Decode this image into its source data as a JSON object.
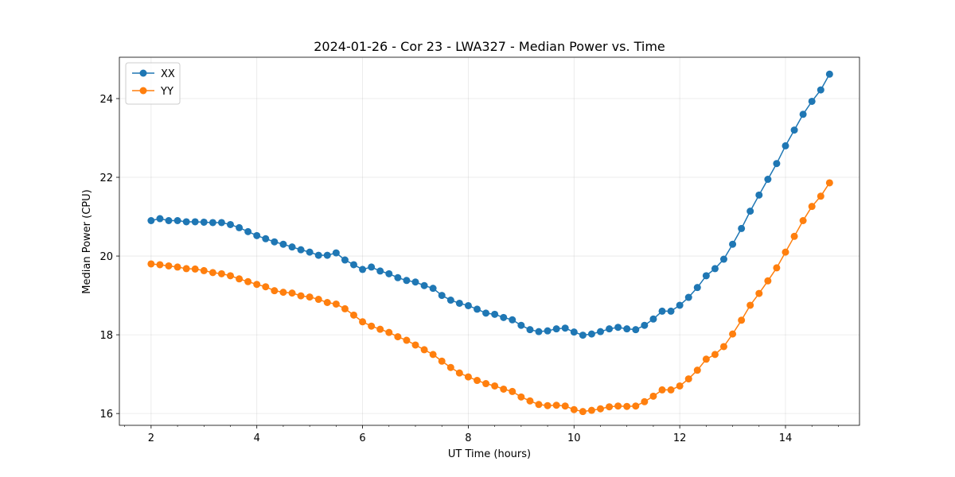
{
  "chart_data": {
    "type": "line",
    "title": "2024-01-26 - Cor 23 - LWA327 - Median Power vs. Time",
    "xlabel": "UT Time (hours)",
    "ylabel": "Median Power (CPU)",
    "xlim": [
      1.4,
      15.4
    ],
    "ylim": [
      15.7,
      25.05
    ],
    "x_ticks": [
      2,
      4,
      6,
      8,
      10,
      12,
      14
    ],
    "x_tick_labels": [
      "2",
      "4",
      "6",
      "8",
      "10",
      "12",
      "14"
    ],
    "y_ticks": [
      16,
      18,
      20,
      22,
      24
    ],
    "y_tick_labels": [
      "16",
      "18",
      "20",
      "22",
      "24"
    ],
    "x_minor_step": 0.5,
    "grid": true,
    "legend_position": "top-left",
    "series": [
      {
        "name": "XX",
        "color": "#1f77b4",
        "x": [
          2.0,
          2.167,
          2.333,
          2.5,
          2.667,
          2.833,
          3.0,
          3.167,
          3.333,
          3.5,
          3.667,
          3.833,
          4.0,
          4.167,
          4.333,
          4.5,
          4.667,
          4.833,
          5.0,
          5.167,
          5.333,
          5.5,
          5.667,
          5.833,
          6.0,
          6.167,
          6.333,
          6.5,
          6.667,
          6.833,
          7.0,
          7.167,
          7.333,
          7.5,
          7.667,
          7.833,
          8.0,
          8.167,
          8.333,
          8.5,
          8.667,
          8.833,
          9.0,
          9.167,
          9.333,
          9.5,
          9.667,
          9.833,
          10.0,
          10.167,
          10.333,
          10.5,
          10.667,
          10.833,
          11.0,
          11.167,
          11.333,
          11.5,
          11.667,
          11.833,
          12.0,
          12.167,
          12.333,
          12.5,
          12.667,
          12.833,
          13.0,
          13.167,
          13.333,
          13.5,
          13.667,
          13.833,
          14.0,
          14.167,
          14.333,
          14.5,
          14.667,
          14.833
        ],
        "y": [
          20.9,
          20.95,
          20.9,
          20.9,
          20.87,
          20.87,
          20.86,
          20.85,
          20.85,
          20.8,
          20.72,
          20.62,
          20.52,
          20.44,
          20.36,
          20.3,
          20.23,
          20.16,
          20.1,
          20.02,
          20.02,
          20.08,
          19.9,
          19.78,
          19.66,
          19.72,
          19.62,
          19.55,
          19.45,
          19.38,
          19.34,
          19.25,
          19.18,
          19.0,
          18.88,
          18.8,
          18.74,
          18.65,
          18.55,
          18.52,
          18.44,
          18.38,
          18.24,
          18.13,
          18.08,
          18.1,
          18.15,
          18.17,
          18.07,
          17.99,
          18.02,
          18.08,
          18.15,
          18.19,
          18.15,
          18.13,
          18.24,
          18.4,
          18.6,
          18.6,
          18.75,
          18.95,
          19.2,
          19.5,
          19.68,
          19.92,
          20.3,
          20.7,
          21.14,
          21.55,
          21.95,
          22.35,
          22.8,
          23.2,
          23.6,
          23.93,
          24.22,
          24.62
        ]
      },
      {
        "name": "YY",
        "color": "#ff7f0e",
        "x": [
          2.0,
          2.167,
          2.333,
          2.5,
          2.667,
          2.833,
          3.0,
          3.167,
          3.333,
          3.5,
          3.667,
          3.833,
          4.0,
          4.167,
          4.333,
          4.5,
          4.667,
          4.833,
          5.0,
          5.167,
          5.333,
          5.5,
          5.667,
          5.833,
          6.0,
          6.167,
          6.333,
          6.5,
          6.667,
          6.833,
          7.0,
          7.167,
          7.333,
          7.5,
          7.667,
          7.833,
          8.0,
          8.167,
          8.333,
          8.5,
          8.667,
          8.833,
          9.0,
          9.167,
          9.333,
          9.5,
          9.667,
          9.833,
          10.0,
          10.167,
          10.333,
          10.5,
          10.667,
          10.833,
          11.0,
          11.167,
          11.333,
          11.5,
          11.667,
          11.833,
          12.0,
          12.167,
          12.333,
          12.5,
          12.667,
          12.833,
          13.0,
          13.167,
          13.333,
          13.5,
          13.667,
          13.833,
          14.0,
          14.167,
          14.333,
          14.5,
          14.667,
          14.833
        ],
        "y": [
          19.8,
          19.78,
          19.75,
          19.72,
          19.68,
          19.67,
          19.63,
          19.58,
          19.55,
          19.5,
          19.42,
          19.35,
          19.28,
          19.22,
          19.12,
          19.08,
          19.06,
          18.99,
          18.96,
          18.9,
          18.82,
          18.78,
          18.66,
          18.5,
          18.33,
          18.22,
          18.14,
          18.06,
          17.95,
          17.86,
          17.74,
          17.62,
          17.5,
          17.33,
          17.17,
          17.03,
          16.93,
          16.84,
          16.76,
          16.7,
          16.62,
          16.56,
          16.42,
          16.32,
          16.23,
          16.2,
          16.21,
          16.19,
          16.1,
          16.05,
          16.08,
          16.12,
          16.17,
          16.19,
          16.18,
          16.19,
          16.3,
          16.44,
          16.6,
          16.6,
          16.7,
          16.88,
          17.1,
          17.38,
          17.5,
          17.7,
          18.02,
          18.37,
          18.75,
          19.05,
          19.37,
          19.7,
          20.1,
          20.5,
          20.9,
          21.26,
          21.52,
          21.86
        ]
      }
    ]
  }
}
